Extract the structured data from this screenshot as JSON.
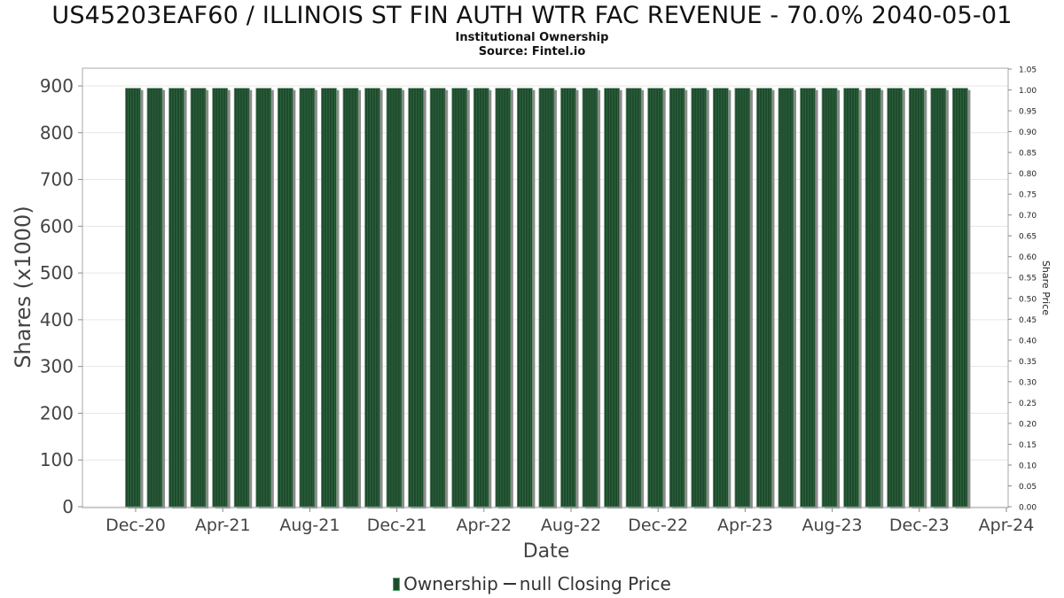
{
  "header": {
    "title": "US45203EAF60 / ILLINOIS ST FIN AUTH WTR FAC REVENUE - 70.0% 2040-05-01",
    "subtitle": "Institutional Ownership",
    "source": "Source: Fintel.io"
  },
  "legend": {
    "ownership_label": "Ownership",
    "price_label": "null Closing Price"
  },
  "colors": {
    "bar_fill": "#1e4a2d",
    "bar_stripe": "#2f6a40",
    "bar_shadow": "#8c8c8c",
    "grid": "#e6e6e6",
    "axis": "#888888"
  },
  "chart_data": {
    "type": "bar",
    "xlabel": "Date",
    "ylabel": "Shares (x1000)",
    "y2label": "Share Price",
    "ylim": [
      0,
      900
    ],
    "y2lim": [
      0,
      1.05
    ],
    "yticks": [
      "0",
      "100",
      "200",
      "300",
      "400",
      "500",
      "600",
      "700",
      "800",
      "900"
    ],
    "y2ticks": [
      "0.00",
      "0.05",
      "0.10",
      "0.15",
      "0.20",
      "0.25",
      "0.30",
      "0.35",
      "0.40",
      "0.45",
      "0.50",
      "0.55",
      "0.60",
      "0.65",
      "0.70",
      "0.75",
      "0.80",
      "0.85",
      "0.90",
      "0.95",
      "1.00",
      "1.05"
    ],
    "xticks": [
      "Dec-20",
      "Apr-21",
      "Aug-21",
      "Dec-21",
      "Apr-22",
      "Aug-22",
      "Dec-22",
      "Apr-23",
      "Aug-23",
      "Dec-23",
      "Apr-24"
    ],
    "x": [
      "2020-12",
      "2021-01",
      "2021-02",
      "2021-03",
      "2021-04",
      "2021-05",
      "2021-06",
      "2021-07",
      "2021-08",
      "2021-09",
      "2021-10",
      "2021-11",
      "2021-12",
      "2022-01",
      "2022-02",
      "2022-03",
      "2022-04",
      "2022-05",
      "2022-06",
      "2022-07",
      "2022-08",
      "2022-09",
      "2022-10",
      "2022-11",
      "2022-12",
      "2023-01",
      "2023-02",
      "2023-03",
      "2023-04",
      "2023-05",
      "2023-06",
      "2023-07",
      "2023-08",
      "2023-09",
      "2023-10",
      "2023-11",
      "2023-12",
      "2024-01",
      "2024-02"
    ],
    "series": [
      {
        "name": "Ownership",
        "values": [
          895,
          895,
          895,
          895,
          895,
          895,
          895,
          895,
          895,
          895,
          895,
          895,
          895,
          895,
          895,
          895,
          895,
          895,
          895,
          895,
          895,
          895,
          895,
          895,
          895,
          895,
          895,
          895,
          895,
          895,
          895,
          895,
          895,
          895,
          895,
          895,
          895,
          895,
          895
        ]
      }
    ],
    "grid": true,
    "legend_position": "bottom-center"
  }
}
